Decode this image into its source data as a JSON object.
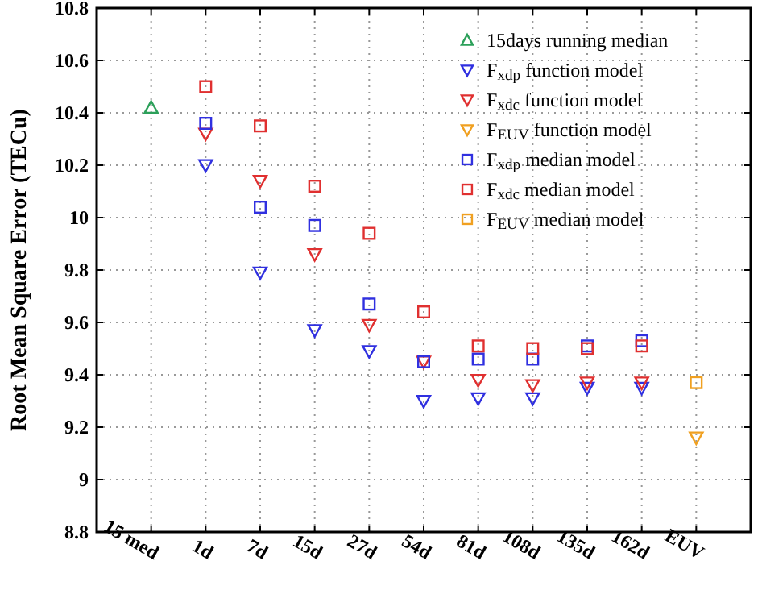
{
  "chart_data": {
    "type": "scatter",
    "ylabel": "Root Mean Square Error (TECu)",
    "categories": [
      "15 med",
      "1d",
      "7d",
      "15d",
      "27d",
      "54d",
      "81d",
      "108d",
      "135d",
      "162d",
      "EUV"
    ],
    "ylim": [
      8.8,
      10.8
    ],
    "yticks": [
      8.8,
      9,
      9.2,
      9.4,
      9.6,
      9.8,
      10,
      10.2,
      10.4,
      10.6,
      10.8
    ],
    "grid": true,
    "legend": "top right",
    "series": [
      {
        "name": "15days running median",
        "color": "#2ca05a",
        "marker": "triangle",
        "values": [
          10.42,
          null,
          null,
          null,
          null,
          null,
          null,
          null,
          null,
          null,
          null
        ]
      },
      {
        "name": "F$_{xdp}$ function model",
        "color": "#3030e0",
        "marker": "triangle-down",
        "values": [
          null,
          10.2,
          9.79,
          9.57,
          9.49,
          9.3,
          9.31,
          9.31,
          9.35,
          9.35,
          null
        ]
      },
      {
        "name": "F$_{xdc}$ function model",
        "color": "#e03030",
        "marker": "triangle-down",
        "values": [
          null,
          10.32,
          10.14,
          9.86,
          9.59,
          9.45,
          9.38,
          9.36,
          9.37,
          9.37,
          null
        ]
      },
      {
        "name": "F$_{EUV}$ function model",
        "color": "#f0a020",
        "marker": "triangle-down",
        "values": [
          null,
          null,
          null,
          null,
          null,
          null,
          null,
          null,
          null,
          null,
          9.16
        ]
      },
      {
        "name": "F$_{xdp}$ median model",
        "color": "#3030e0",
        "marker": "square",
        "values": [
          null,
          10.36,
          10.04,
          9.97,
          9.67,
          9.45,
          9.46,
          9.46,
          9.51,
          9.53,
          null
        ]
      },
      {
        "name": "F$_{xdc}$ median model",
        "color": "#e03030",
        "marker": "square",
        "values": [
          null,
          10.5,
          10.35,
          10.12,
          9.94,
          9.64,
          9.51,
          9.5,
          9.5,
          9.51,
          null
        ]
      },
      {
        "name": "F$_{EUV}$ median model",
        "color": "#f0a020",
        "marker": "square",
        "values": [
          null,
          null,
          null,
          null,
          null,
          null,
          null,
          null,
          null,
          null,
          9.37
        ]
      }
    ]
  }
}
